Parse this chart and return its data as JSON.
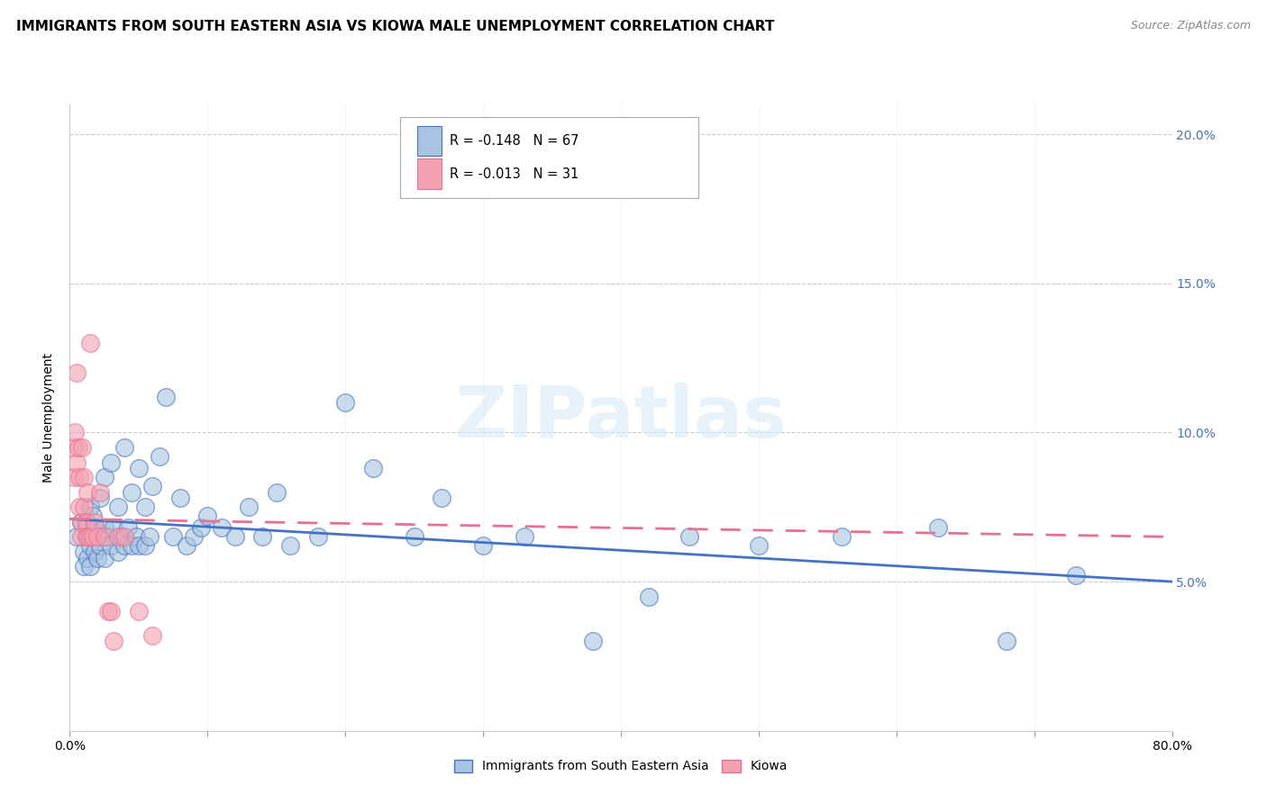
{
  "title": "IMMIGRANTS FROM SOUTH EASTERN ASIA VS KIOWA MALE UNEMPLOYMENT CORRELATION CHART",
  "source": "Source: ZipAtlas.com",
  "xlabel": "",
  "ylabel": "Male Unemployment",
  "legend_label1": "Immigrants from South Eastern Asia",
  "legend_label2": "Kiowa",
  "r1": "-0.148",
  "n1": "67",
  "r2": "-0.013",
  "n2": "31",
  "xlim": [
    0,
    0.8
  ],
  "ylim": [
    0,
    0.21
  ],
  "color_blue": "#a8c4e0",
  "color_pink": "#f4a0b0",
  "color_blue_line": "#4472c4",
  "color_pink_line": "#e87090",
  "watermark": "ZIPatlas",
  "blue_scatter_x": [
    0.005,
    0.008,
    0.01,
    0.01,
    0.012,
    0.013,
    0.015,
    0.015,
    0.015,
    0.017,
    0.018,
    0.018,
    0.02,
    0.02,
    0.022,
    0.022,
    0.025,
    0.025,
    0.025,
    0.028,
    0.03,
    0.03,
    0.032,
    0.035,
    0.035,
    0.037,
    0.04,
    0.04,
    0.042,
    0.045,
    0.045,
    0.048,
    0.05,
    0.05,
    0.055,
    0.055,
    0.058,
    0.06,
    0.065,
    0.07,
    0.075,
    0.08,
    0.085,
    0.09,
    0.095,
    0.1,
    0.11,
    0.12,
    0.13,
    0.14,
    0.15,
    0.16,
    0.18,
    0.2,
    0.22,
    0.25,
    0.27,
    0.3,
    0.33,
    0.38,
    0.42,
    0.45,
    0.5,
    0.56,
    0.63,
    0.68,
    0.73
  ],
  "blue_scatter_y": [
    0.065,
    0.07,
    0.06,
    0.055,
    0.068,
    0.058,
    0.075,
    0.062,
    0.055,
    0.072,
    0.068,
    0.06,
    0.065,
    0.058,
    0.078,
    0.062,
    0.085,
    0.068,
    0.058,
    0.065,
    0.09,
    0.062,
    0.068,
    0.075,
    0.06,
    0.065,
    0.095,
    0.062,
    0.068,
    0.08,
    0.062,
    0.065,
    0.088,
    0.062,
    0.075,
    0.062,
    0.065,
    0.082,
    0.092,
    0.112,
    0.065,
    0.078,
    0.062,
    0.065,
    0.068,
    0.072,
    0.068,
    0.065,
    0.075,
    0.065,
    0.08,
    0.062,
    0.065,
    0.11,
    0.088,
    0.065,
    0.078,
    0.062,
    0.065,
    0.03,
    0.045,
    0.065,
    0.062,
    0.065,
    0.068,
    0.03,
    0.052
  ],
  "pink_scatter_x": [
    0.003,
    0.003,
    0.004,
    0.005,
    0.005,
    0.006,
    0.007,
    0.007,
    0.008,
    0.008,
    0.009,
    0.01,
    0.01,
    0.012,
    0.012,
    0.013,
    0.013,
    0.015,
    0.015,
    0.017,
    0.018,
    0.02,
    0.022,
    0.025,
    0.028,
    0.03,
    0.032,
    0.035,
    0.04,
    0.05,
    0.06
  ],
  "pink_scatter_y": [
    0.095,
    0.085,
    0.1,
    0.12,
    0.09,
    0.095,
    0.085,
    0.075,
    0.07,
    0.065,
    0.095,
    0.085,
    0.075,
    0.07,
    0.065,
    0.08,
    0.065,
    0.13,
    0.065,
    0.065,
    0.07,
    0.065,
    0.08,
    0.065,
    0.04,
    0.04,
    0.03,
    0.065,
    0.065,
    0.04,
    0.032
  ],
  "blue_trend_x0": 0.0,
  "blue_trend_y0": 0.071,
  "blue_trend_x1": 0.8,
  "blue_trend_y1": 0.05,
  "pink_trend_x0": 0.0,
  "pink_trend_y0": 0.071,
  "pink_trend_x1": 0.8,
  "pink_trend_y1": 0.065,
  "title_fontsize": 11,
  "label_fontsize": 10,
  "tick_fontsize": 10
}
